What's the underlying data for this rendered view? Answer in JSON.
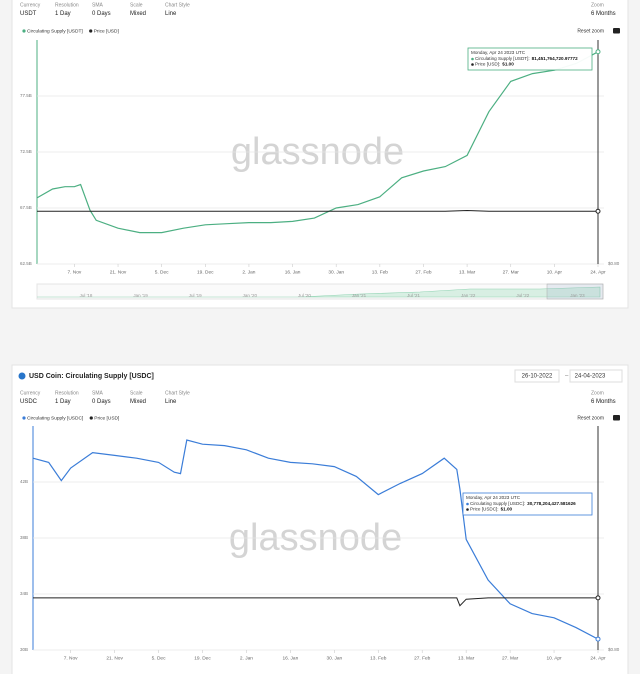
{
  "panels": [
    {
      "controls": [
        {
          "label": "Currency",
          "value": "USDT"
        },
        {
          "label": "Resolution",
          "value": "1 Day"
        },
        {
          "label": "SMA",
          "value": "0 Days"
        },
        {
          "label": "Scale",
          "value": "Mixed"
        },
        {
          "label": "Chart Style",
          "value": "Line"
        }
      ],
      "zoom": {
        "label": "Zoom",
        "value": "6 Months"
      },
      "reset_zoom": "Reset zoom",
      "navigator": [
        "Jul '18",
        "Jan '19",
        "Jul '19",
        "Jan '20",
        "Jul '20",
        "Jan '21",
        "Jul '21",
        "Jan '22",
        "Jul '22",
        "Jan '23"
      ]
    },
    {
      "title": "USD Coin: Circulating Supply [USDC]",
      "date_from": "26-10-2022",
      "date_to": "24-04-2023",
      "controls": [
        {
          "label": "Currency",
          "value": "USDC"
        },
        {
          "label": "Resolution",
          "value": "1 Day"
        },
        {
          "label": "SMA",
          "value": "0 Days"
        },
        {
          "label": "Scale",
          "value": "Mixed"
        },
        {
          "label": "Chart Style",
          "value": "Line"
        }
      ],
      "zoom": {
        "label": "Zoom",
        "value": "6 Months"
      },
      "reset_zoom": "Reset zoom"
    }
  ],
  "chart_data": [
    {
      "type": "line",
      "watermark": "glassnode",
      "x": [
        "26. Oct",
        "31. Oct",
        "4. Nov",
        "7. Nov",
        "9. Nov",
        "12. Nov",
        "14. Nov",
        "21. Nov",
        "28. Nov",
        "5. Dec",
        "12. Dec",
        "19. Dec",
        "26. Dec",
        "2. Jan",
        "9. Jan",
        "16. Jan",
        "23. Jan",
        "30. Jan",
        "6. Feb",
        "13. Feb",
        "20. Feb",
        "27. Feb",
        "6. Mar",
        "13. Mar",
        "20. Mar",
        "27. Mar",
        "3. Apr",
        "10. Apr",
        "17. Apr",
        "24. Apr"
      ],
      "xlim": [
        "26. Oct",
        "24. Apr"
      ],
      "xticks": [
        "7. Nov",
        "21. Nov",
        "5. Dec",
        "19. Dec",
        "2. Jan",
        "16. Jan",
        "30. Jan",
        "13. Feb",
        "27. Feb",
        "13. Mar",
        "27. Mar",
        "10. Apr",
        "24. Apr"
      ],
      "series": [
        {
          "name": "Circulating Supply [USDT]",
          "color": "#4caf82",
          "values": [
            68.4,
            69.2,
            69.4,
            69.4,
            69.6,
            67.3,
            66.4,
            65.7,
            65.3,
            65.3,
            65.7,
            66.0,
            66.1,
            66.2,
            66.2,
            66.3,
            66.6,
            67.5,
            67.8,
            68.5,
            70.2,
            70.8,
            71.2,
            72.2,
            76.1,
            78.8,
            79.5,
            79.8,
            80.4,
            81.45
          ]
        },
        {
          "name": "Price [USD]",
          "color": "#222222",
          "axis": "y2",
          "values": [
            1,
            1,
            1,
            1,
            1,
            1,
            1,
            1,
            1,
            1,
            1,
            1,
            1,
            1,
            1,
            1,
            1,
            1,
            1,
            1,
            1,
            1,
            1,
            1.003,
            1,
            1,
            1,
            1,
            1,
            1
          ]
        }
      ],
      "ylim": [
        62.5,
        82.5
      ],
      "yticks": [
        {
          "value": 62.5,
          "label": "62.5B"
        },
        {
          "value": 67.5,
          "label": "67.5B"
        },
        {
          "value": 72.5,
          "label": "72.5B"
        },
        {
          "value": 77.5,
          "label": "77.5B"
        }
      ],
      "y2lim": [
        0.8,
        1.65
      ],
      "y2ticks": [
        {
          "value": 0.8,
          "label": "$0.80"
        }
      ],
      "grid": true,
      "tooltip": {
        "title": "Monday, Apr 24 2023 UTC",
        "rows": [
          {
            "label": "Circulating Supply [USDT]:",
            "value": "81,451,764,720.97772"
          },
          {
            "label": "Price [USD]:",
            "value": "$1.00"
          }
        ]
      }
    },
    {
      "type": "line",
      "watermark": "glassnode",
      "x": [
        "26. Oct",
        "31. Oct",
        "4. Nov",
        "7. Nov",
        "14. Nov",
        "21. Nov",
        "28. Nov",
        "5. Dec",
        "10. Dec",
        "12. Dec",
        "14. Dec",
        "19. Dec",
        "26. Dec",
        "2. Jan",
        "9. Jan",
        "16. Jan",
        "23. Jan",
        "30. Jan",
        "6. Feb",
        "13. Feb",
        "20. Feb",
        "27. Feb",
        "6. Mar",
        "10. Mar",
        "11. Mar",
        "13. Mar",
        "20. Mar",
        "27. Mar",
        "3. Apr",
        "10. Apr",
        "17. Apr",
        "24. Apr"
      ],
      "xlim": [
        "26. Oct",
        "24. Apr"
      ],
      "xticks": [
        "7. Nov",
        "21. Nov",
        "5. Dec",
        "19. Dec",
        "2. Jan",
        "16. Jan",
        "30. Jan",
        "13. Feb",
        "27. Feb",
        "13. Mar",
        "27. Mar",
        "10. Apr",
        "24. Apr"
      ],
      "series": [
        {
          "name": "Circulating Supply [USDC]",
          "color": "#3b7dd8",
          "values": [
            43.7,
            43.4,
            42.1,
            43.0,
            44.1,
            43.9,
            43.7,
            43.4,
            42.7,
            42.6,
            45.0,
            44.7,
            44.6,
            44.3,
            43.7,
            43.4,
            43.3,
            43.1,
            42.4,
            41.1,
            41.9,
            42.6,
            43.7,
            42.9,
            41.5,
            37.9,
            35.0,
            33.3,
            32.6,
            32.3,
            31.6,
            30.78
          ]
        },
        {
          "name": "Price [USD]",
          "color": "#222222",
          "axis": "y2",
          "values": [
            1,
            1,
            1,
            1,
            1,
            1,
            1,
            1,
            1,
            1,
            1,
            1,
            1,
            1,
            1,
            1,
            1,
            1,
            1,
            1,
            1,
            1,
            1,
            1,
            0.97,
            0.995,
            1,
            1,
            1,
            1,
            1,
            1
          ]
        }
      ],
      "ylim": [
        30,
        46
      ],
      "yticks": [
        {
          "value": 30,
          "label": "30B"
        },
        {
          "value": 34,
          "label": "34B"
        },
        {
          "value": 38,
          "label": "38B"
        },
        {
          "value": 42,
          "label": "42B"
        }
      ],
      "y2lim": [
        0.8,
        1.66
      ],
      "y2ticks": [
        {
          "value": 0.8,
          "label": "$0.80"
        }
      ],
      "grid": true,
      "tooltip": {
        "title": "Monday, Apr 24 2023 UTC",
        "rows": [
          {
            "label": "Circulating Supply [USDC]:",
            "value": "30,778,204,427.581626"
          },
          {
            "label": "Price [USDC]:",
            "value": "$1.00"
          }
        ]
      }
    }
  ]
}
